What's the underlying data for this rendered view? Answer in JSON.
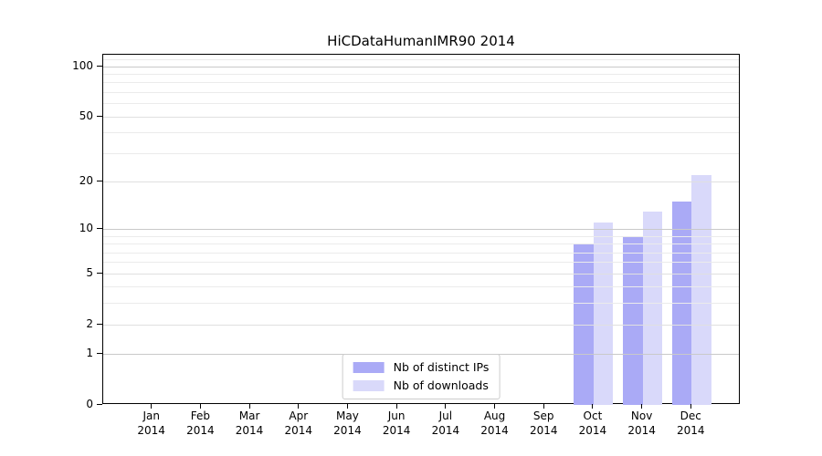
{
  "title": "HiCDataHumanIMR90 2014",
  "chart_data": {
    "type": "bar",
    "title": "HiCDataHumanIMR90 2014",
    "categories": [
      "Jan",
      "Feb",
      "Mar",
      "Apr",
      "May",
      "Jun",
      "Jul",
      "Aug",
      "Sep",
      "Oct",
      "Nov",
      "Dec"
    ],
    "x_year": "2014",
    "series": [
      {
        "name": "Nb of distinct IPs",
        "color": "#aaaaf6",
        "values": [
          0,
          0,
          0,
          0,
          0,
          0,
          0,
          0,
          0,
          8,
          9,
          15
        ]
      },
      {
        "name": "Nb of downloads",
        "color": "#d9d9fa",
        "values": [
          0,
          0,
          0,
          0,
          0,
          0,
          0,
          0,
          0,
          11,
          13,
          22
        ]
      }
    ],
    "y_axis": {
      "scale": "log1p",
      "ticks": [
        0,
        1,
        2,
        5,
        10,
        20,
        50,
        100
      ],
      "minor_ticks": [
        3,
        4,
        6,
        7,
        8,
        9,
        30,
        40,
        60,
        70,
        80,
        90,
        110
      ],
      "max": 117
    },
    "xlabel": "",
    "ylabel": "",
    "grid": true,
    "grid_over_bars": true,
    "legend_position": "lower center",
    "colors": {
      "major_gridline": "#c9c9c9",
      "labeled_gridline": "#e0e0e0",
      "minor_gridline": "#ebebeb",
      "spine": "#000000"
    }
  }
}
